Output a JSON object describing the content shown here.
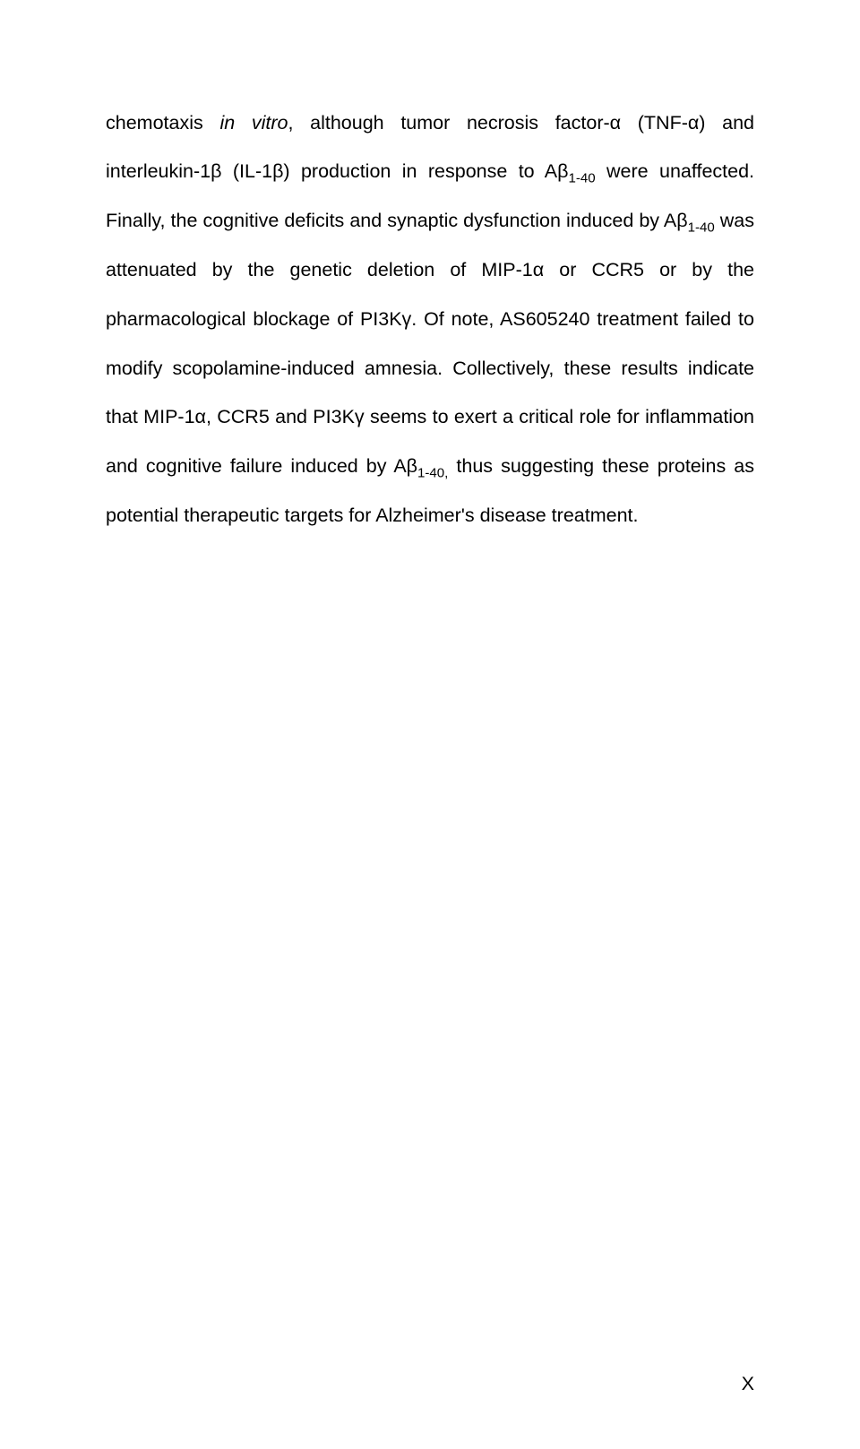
{
  "paragraph": {
    "segments": [
      {
        "text": "chemotaxis ",
        "style": ""
      },
      {
        "text": "in vitro",
        "style": "italic"
      },
      {
        "text": ", although tumor necrosis factor-α (TNF-α) and interleukin-1β (IL-1β) production in response to Aβ",
        "style": ""
      },
      {
        "text": "1-40",
        "style": "sub"
      },
      {
        "text": " were unaffected. Finally, the cognitive deficits and synaptic dysfunction induced by Aβ",
        "style": ""
      },
      {
        "text": "1-40",
        "style": "sub"
      },
      {
        "text": " was attenuated by the genetic deletion of MIP-1α or CCR5 or by the pharmacological blockage of PI3Kγ. Of note, AS605240 treatment failed to modify scopolamine-induced amnesia. Collectively, these results indicate that MIP-1α, CCR5 and PI3Kγ seems to exert a critical role for inflammation and cognitive failure induced by Aβ",
        "style": ""
      },
      {
        "text": "1-40,",
        "style": "sub"
      },
      {
        "text": " thus suggesting these proteins as potential therapeutic targets for Alzheimer's disease treatment.",
        "style": ""
      }
    ]
  },
  "pageNumber": "X"
}
